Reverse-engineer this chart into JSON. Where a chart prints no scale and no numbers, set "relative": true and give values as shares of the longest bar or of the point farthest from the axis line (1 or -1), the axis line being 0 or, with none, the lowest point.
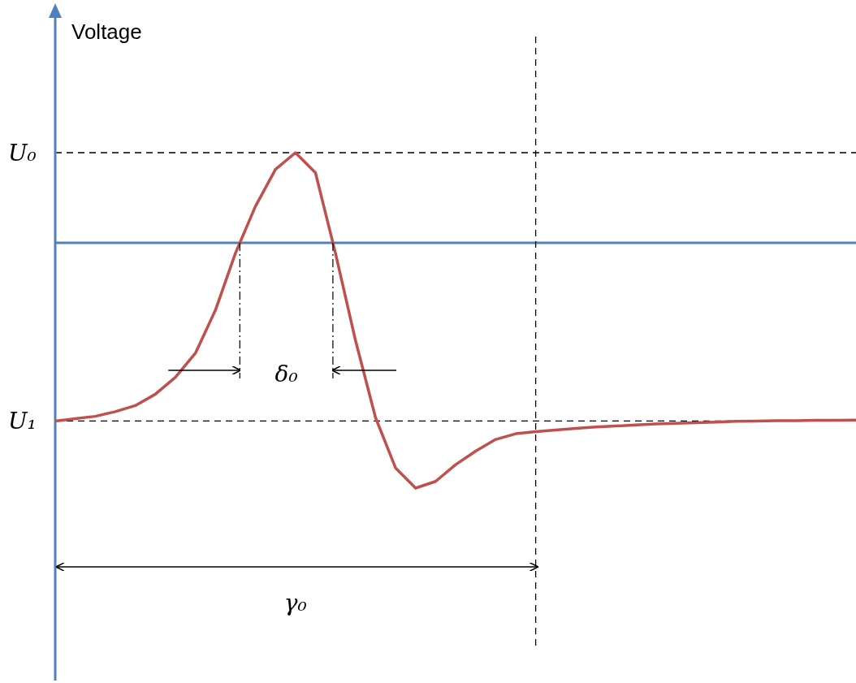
{
  "chart_data": {
    "type": "line",
    "relative": true,
    "tick_labels": false,
    "marker": "none",
    "line_style": "solid",
    "categories": [
      null,
      null,
      null,
      null,
      null,
      null,
      null,
      null,
      null,
      null,
      null,
      null,
      null,
      null,
      null,
      null,
      null,
      null,
      null,
      null,
      null,
      null,
      null,
      null,
      null,
      null,
      null,
      null,
      null,
      null,
      null,
      null,
      null,
      null,
      null,
      null,
      null,
      null,
      null,
      null,
      null
    ],
    "series": [
      {
        "color": "#c0504d",
        "values": [
          0.2,
          0.207,
          0.214,
          0.228,
          0.246,
          0.28,
          0.33,
          0.402,
          0.53,
          0.7,
          0.84,
          0.95,
          1.0,
          0.94,
          0.7,
          0.44,
          0.21,
          0.06,
          0,
          0.02,
          0.07,
          0.11,
          0.145,
          0.162,
          0.168,
          0.173,
          0.178,
          0.182,
          0.185,
          0.188,
          0.191,
          0.193,
          0.195,
          0.197,
          0.199,
          0.2,
          0.201,
          0.201,
          0.202,
          0.202,
          0.203
        ]
      }
    ],
    "ref_lines": [
      {
        "axis": "y",
        "value": 0.731,
        "line_style": "solid",
        "color": "#4f81bd"
      }
    ],
    "annotations": [
      "Voltage",
      "U₀",
      "U₁",
      "δ₀",
      "γ₀"
    ]
  }
}
